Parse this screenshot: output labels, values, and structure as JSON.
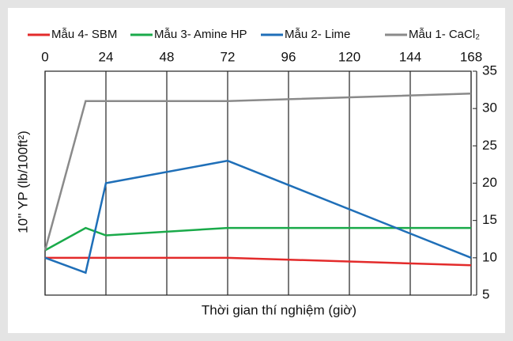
{
  "chart_data": {
    "type": "line",
    "xlabel": "Thời gian thí nghiệm (giờ)",
    "ylabel": "10'' YP (lb/100ft²)",
    "xlim": [
      0,
      168
    ],
    "xticks": [
      0,
      24,
      48,
      72,
      96,
      120,
      144,
      168
    ],
    "ylim": [
      5,
      35
    ],
    "yticks": [
      5,
      10,
      15,
      20,
      25,
      30,
      35
    ],
    "grid": true,
    "legend": "top",
    "series": [
      {
        "name": "Mẫu 4- SBM",
        "color": "#e32b2b",
        "x": [
          0,
          72,
          168
        ],
        "values": [
          10,
          10,
          9
        ]
      },
      {
        "name": "Mẫu 3- Amine HP",
        "color": "#1aaa4a",
        "x": [
          0,
          16,
          24,
          72,
          168
        ],
        "values": [
          11,
          14,
          13,
          14,
          14
        ]
      },
      {
        "name": "Mẫu 2- Lime",
        "color": "#1f6fb8",
        "x": [
          0,
          16,
          24,
          72,
          168
        ],
        "values": [
          10,
          8,
          20,
          23,
          10
        ]
      },
      {
        "name": "Mẫu 1- CaCl₂",
        "color": "#8a8a8a",
        "x": [
          0,
          16,
          72,
          168
        ],
        "values": [
          11,
          31,
          31,
          32
        ]
      }
    ]
  }
}
